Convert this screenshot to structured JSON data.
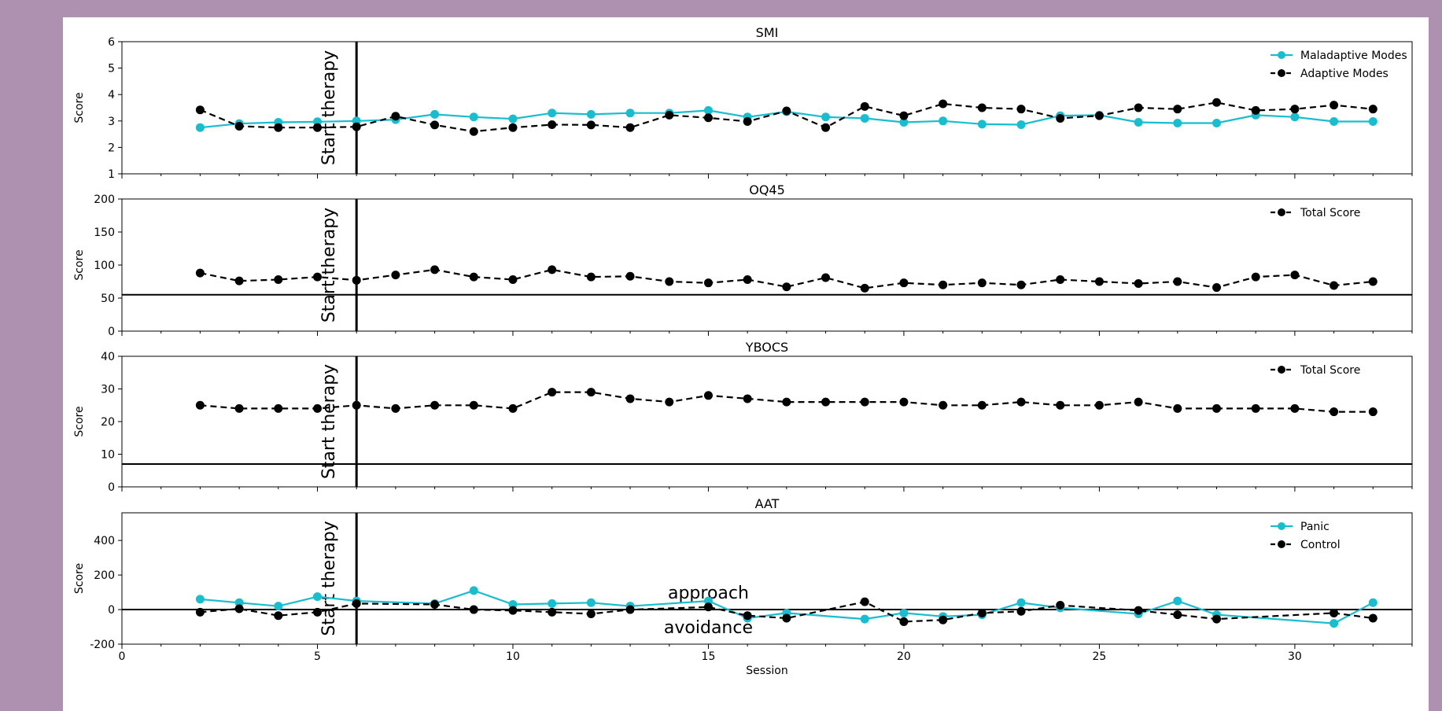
{
  "colors": {
    "background": "#ae90b0",
    "figure": "#ffffff",
    "maladaptive": "#17becf",
    "adaptive": "#000000",
    "panic": "#17becf",
    "control": "#000000",
    "axis": "#000000"
  },
  "chart_data": [
    {
      "type": "line",
      "title": "SMI",
      "ylabel": "Score",
      "ylim": [
        1,
        6
      ],
      "yticks": [
        1,
        2,
        3,
        4,
        5,
        6
      ],
      "xlim": [
        0,
        33
      ],
      "legend_position": "top-right",
      "annotations": [
        {
          "text": "Start therapy",
          "x": 6,
          "kind": "vertical-line"
        }
      ],
      "series": [
        {
          "name": "Maladaptive Modes",
          "style": "solid",
          "x": [
            2,
            3,
            4,
            5,
            6,
            7,
            8,
            9,
            10,
            11,
            12,
            13,
            14,
            15,
            16,
            17,
            18,
            19,
            20,
            21,
            22,
            23,
            24,
            25,
            26,
            27,
            28,
            29,
            30,
            31,
            32
          ],
          "values": [
            2.75,
            2.9,
            2.95,
            2.97,
            3.0,
            3.05,
            3.25,
            3.15,
            3.08,
            3.3,
            3.25,
            3.3,
            3.3,
            3.4,
            3.15,
            3.35,
            3.15,
            3.1,
            2.95,
            3.0,
            2.88,
            2.86,
            3.2,
            3.22,
            2.95,
            2.92,
            2.92,
            3.22,
            3.15,
            2.98,
            2.98
          ]
        },
        {
          "name": "Adaptive Modes",
          "style": "dashed",
          "x": [
            2,
            3,
            4,
            5,
            6,
            7,
            8,
            9,
            10,
            11,
            12,
            13,
            14,
            15,
            16,
            17,
            18,
            19,
            20,
            21,
            22,
            23,
            24,
            25,
            26,
            27,
            28,
            29,
            30,
            31,
            32
          ],
          "values": [
            3.42,
            2.8,
            2.75,
            2.75,
            2.78,
            3.18,
            2.85,
            2.6,
            2.75,
            2.86,
            2.85,
            2.75,
            3.22,
            3.12,
            2.98,
            3.38,
            2.75,
            3.55,
            3.2,
            3.65,
            3.5,
            3.45,
            3.1,
            3.2,
            3.5,
            3.45,
            3.7,
            3.4,
            3.45,
            3.6,
            3.45
          ]
        }
      ]
    },
    {
      "type": "line",
      "title": "OQ45",
      "ylabel": "Score",
      "ylim": [
        0,
        200
      ],
      "yticks": [
        0,
        50,
        100,
        150,
        200
      ],
      "xlim": [
        0,
        33
      ],
      "legend_position": "top-right",
      "hline": 55,
      "annotations": [
        {
          "text": "Start therapy",
          "x": 6,
          "kind": "vertical-line"
        }
      ],
      "series": [
        {
          "name": "Total Score",
          "style": "dashed",
          "x": [
            2,
            3,
            4,
            5,
            6,
            7,
            8,
            9,
            10,
            11,
            12,
            13,
            14,
            15,
            16,
            17,
            18,
            19,
            20,
            21,
            22,
            23,
            24,
            25,
            26,
            27,
            28,
            29,
            30,
            31,
            32
          ],
          "values": [
            88,
            76,
            78,
            82,
            77,
            85,
            93,
            82,
            78,
            93,
            82,
            83,
            75,
            73,
            78,
            67,
            81,
            65,
            73,
            70,
            73,
            70,
            78,
            75,
            72,
            75,
            66,
            82,
            85,
            69,
            75
          ]
        }
      ]
    },
    {
      "type": "line",
      "title": "YBOCS",
      "ylabel": "Score",
      "ylim": [
        0,
        40
      ],
      "yticks": [
        0,
        10,
        20,
        30,
        40
      ],
      "xlim": [
        0,
        33
      ],
      "legend_position": "top-right",
      "hline": 7,
      "annotations": [
        {
          "text": "Start therapy",
          "x": 6,
          "kind": "vertical-line"
        }
      ],
      "series": [
        {
          "name": "Total Score",
          "style": "dashed",
          "x": [
            2,
            3,
            4,
            5,
            6,
            7,
            8,
            9,
            10,
            11,
            12,
            13,
            14,
            15,
            16,
            17,
            18,
            19,
            20,
            21,
            22,
            23,
            24,
            25,
            26,
            27,
            28,
            29,
            30,
            31,
            32
          ],
          "values": [
            25,
            24,
            24,
            24,
            25,
            24,
            25,
            25,
            24,
            29,
            29,
            27,
            26,
            28,
            27,
            26,
            26,
            26,
            26,
            25,
            25,
            26,
            25,
            25,
            26,
            24,
            24,
            24,
            24,
            23,
            23
          ]
        }
      ]
    },
    {
      "type": "line",
      "title": "AAT",
      "ylabel": "Score",
      "xlabel": "Session",
      "ylim": [
        -200,
        560
      ],
      "yticks": [
        -200,
        0,
        200,
        400
      ],
      "xlim": [
        0,
        33
      ],
      "xticks": [
        0,
        5,
        10,
        15,
        20,
        25,
        30
      ],
      "legend_position": "top-right",
      "hline": 0,
      "annotations": [
        {
          "text": "Start therapy",
          "x": 6,
          "kind": "vertical-line"
        },
        {
          "text": "approach",
          "x": 15,
          "y": 100
        },
        {
          "text": "avoidance",
          "x": 15,
          "y": -100
        }
      ],
      "series": [
        {
          "name": "Panic",
          "style": "solid",
          "x": [
            2,
            3,
            4,
            5,
            6,
            8,
            9,
            10,
            11,
            12,
            13,
            15,
            16,
            17,
            19,
            20,
            21,
            22,
            23,
            24,
            26,
            27,
            28,
            31,
            32
          ],
          "values": [
            60,
            40,
            20,
            75,
            50,
            35,
            110,
            30,
            35,
            40,
            20,
            50,
            -50,
            -20,
            -55,
            -20,
            -40,
            -30,
            40,
            10,
            -25,
            50,
            -30,
            -80,
            40
          ]
        },
        {
          "name": "Control",
          "style": "dashed",
          "x": [
            2,
            3,
            4,
            5,
            6,
            8,
            9,
            10,
            11,
            12,
            13,
            15,
            16,
            17,
            19,
            20,
            21,
            22,
            23,
            24,
            26,
            27,
            28,
            31,
            32
          ],
          "values": [
            -15,
            5,
            -35,
            -15,
            35,
            30,
            0,
            -5,
            -15,
            -25,
            0,
            15,
            -35,
            -50,
            45,
            -70,
            -60,
            -20,
            -10,
            25,
            -5,
            -30,
            -55,
            -20,
            -50
          ]
        }
      ]
    }
  ]
}
